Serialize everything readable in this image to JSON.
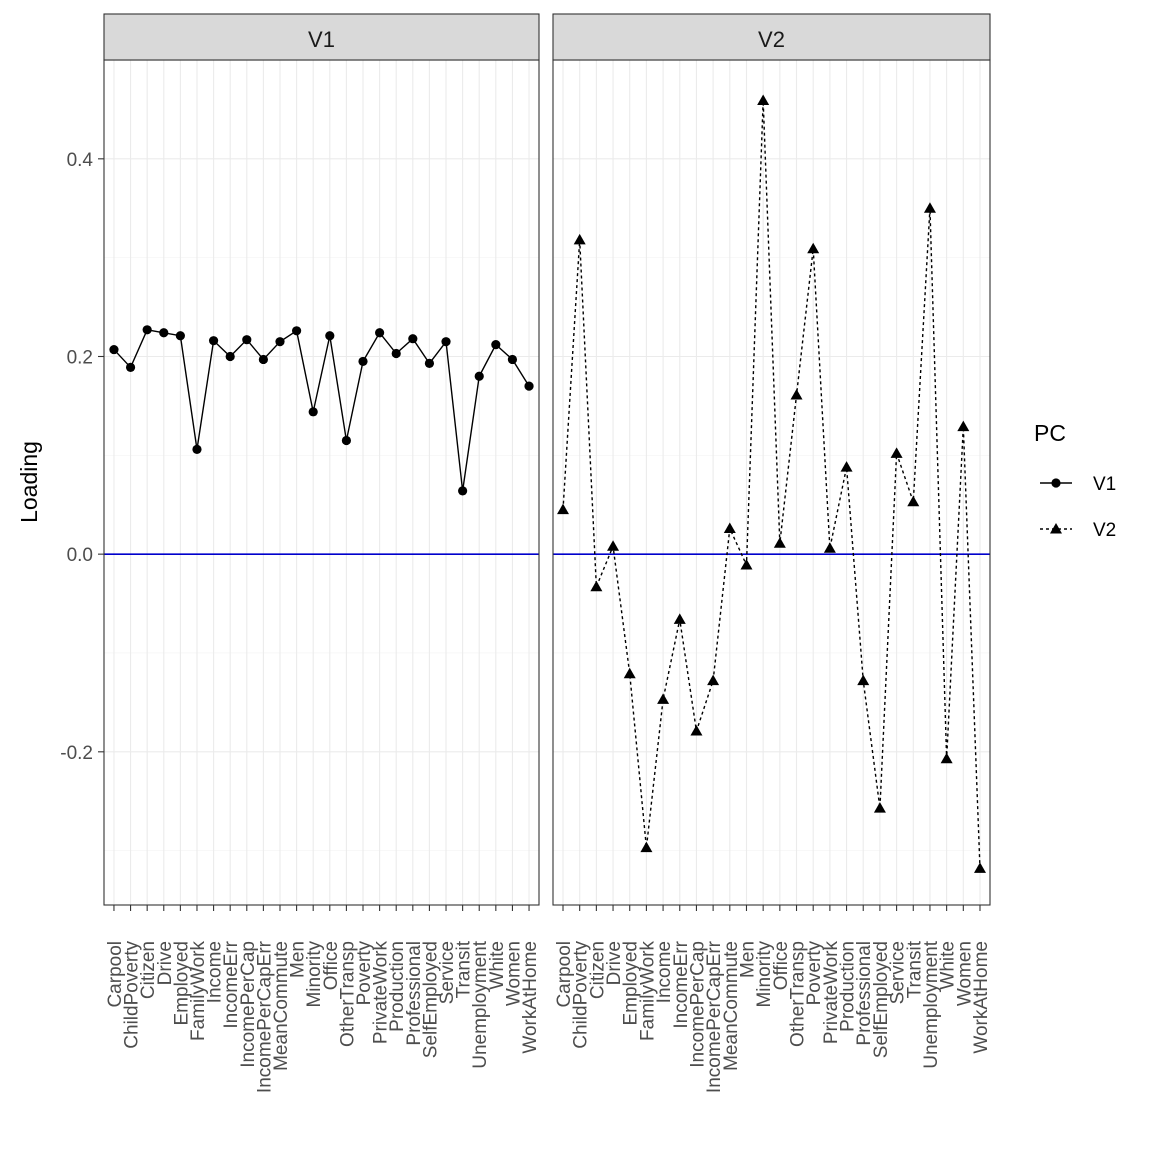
{
  "chart_data": {
    "type": "line",
    "facet_var": "PC",
    "panels": [
      "V1",
      "V2"
    ],
    "ylabel": "Loading",
    "xlabel": "",
    "ylim": [
      -0.355,
      0.5
    ],
    "y_ticks": [
      -0.2,
      0.0,
      0.2,
      0.4
    ],
    "y_tick_labels": [
      "-0.2",
      "0.0",
      "0.2",
      "0.4"
    ],
    "hline": {
      "y": 0,
      "color": "#0000cc"
    },
    "grid": true,
    "legend": {
      "title": "PC",
      "position": "right",
      "entries": [
        "V1",
        "V2"
      ]
    },
    "categories": [
      "Carpool",
      "ChildPoverty",
      "Citizen",
      "Drive",
      "Employed",
      "FamilyWork",
      "Income",
      "IncomeErr",
      "IncomePerCap",
      "IncomePerCapErr",
      "MeanCommute",
      "Men",
      "Minority",
      "Office",
      "OtherTransp",
      "Poverty",
      "PrivateWork",
      "Production",
      "Professional",
      "SelfEmployed",
      "Service",
      "Transit",
      "Unemployment",
      "White",
      "Women",
      "WorkAtHome"
    ],
    "series": [
      {
        "name": "V1",
        "marker": "circle",
        "linestyle": "solid",
        "values": [
          0.207,
          0.189,
          0.227,
          0.224,
          0.221,
          0.106,
          0.216,
          0.2,
          0.217,
          0.197,
          0.215,
          0.226,
          0.144,
          0.221,
          0.115,
          0.195,
          0.224,
          0.203,
          0.218,
          0.193,
          0.215,
          0.064,
          0.18,
          0.212,
          0.197,
          0.17
        ]
      },
      {
        "name": "V2",
        "marker": "triangle",
        "linestyle": "dotted",
        "values": [
          0.045,
          0.318,
          -0.033,
          0.008,
          -0.121,
          -0.297,
          -0.147,
          -0.066,
          -0.179,
          -0.128,
          0.026,
          -0.011,
          0.459,
          0.011,
          0.161,
          0.309,
          0.006,
          0.088,
          -0.128,
          -0.257,
          0.102,
          0.053,
          0.35,
          -0.207,
          0.129,
          -0.318
        ]
      }
    ]
  }
}
